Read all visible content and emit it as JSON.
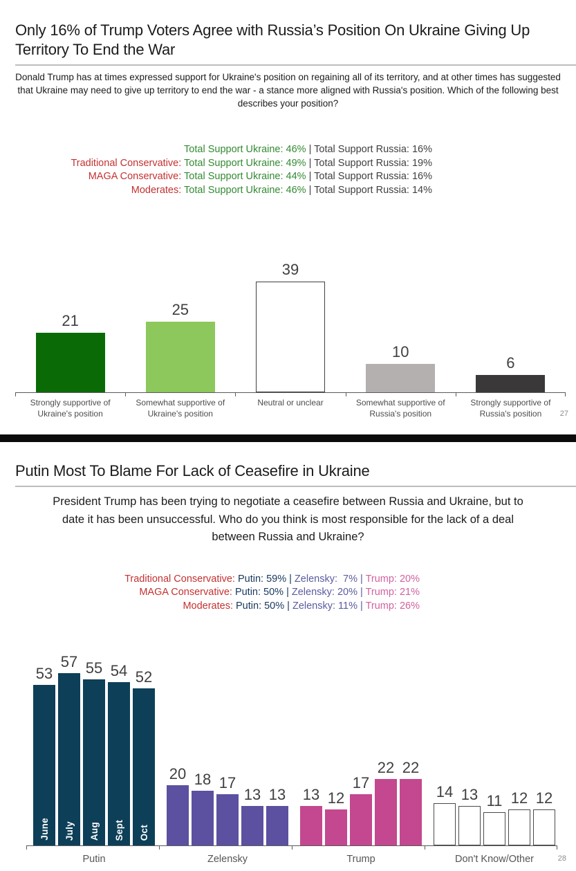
{
  "colors": {
    "category_red": "#c43131",
    "ukraine_green": "#338a33",
    "neutral_dark_text": "#3f3f3f",
    "putin_navy": "#17375d",
    "zelensky_purple": "#5a5ca0",
    "trump_pink": "#d2619e",
    "divider_black": "#0b0b0b"
  },
  "slide1": {
    "title": "Only 16% of Trump Voters Agree with Russia’s Position On Ukraine Giving Up Territory To End the War",
    "subtitle": "Donald Trump has at times expressed support for Ukraine's position on regaining all of its territory, and at other times has suggested that Ukraine may need to give up territory to end the war - a stance more aligned with Russia's position. Which of the following best describes your position?",
    "page_number": "27",
    "stats_lines": [
      {
        "segments": [
          {
            "text": "Total Support Ukraine: 46%",
            "color": "#338a33"
          },
          {
            "text": " | Total Support Russia: 16%",
            "color": "#3f3f3f"
          }
        ]
      },
      {
        "segments": [
          {
            "text": "Traditional Conservative: ",
            "color": "#c43131"
          },
          {
            "text": "Total Support Ukraine: 49%",
            "color": "#338a33"
          },
          {
            "text": " | Total Support Russia: 19%",
            "color": "#3f3f3f"
          }
        ]
      },
      {
        "segments": [
          {
            "text": "MAGA Conservative: ",
            "color": "#c43131"
          },
          {
            "text": "Total Support Ukraine: 44%",
            "color": "#338a33"
          },
          {
            "text": " | Total Support Russia: 16%",
            "color": "#3f3f3f"
          }
        ]
      },
      {
        "segments": [
          {
            "text": "Moderates: ",
            "color": "#c43131"
          },
          {
            "text": "Total Support Ukraine: 46%",
            "color": "#338a33"
          },
          {
            "text": " | Total Support Russia: 14%",
            "color": "#3f3f3f"
          }
        ]
      }
    ]
  },
  "slide2": {
    "title": "Putin Most To Blame For Lack of Ceasefire in Ukraine",
    "subtitle": "President Trump has been trying to negotiate a ceasefire between Russia and Ukraine, but to date it has been unsuccessful. Who do you think is most responsible for the lack of a deal between Russia and Ukraine?",
    "page_number": "28",
    "stats_lines": [
      {
        "segments": [
          {
            "text": "Traditional Conservative: ",
            "color": "#c43131"
          },
          {
            "text": "Putin: 59% | ",
            "color": "#17375d"
          },
          {
            "text": "Zelensky:  7% | ",
            "color": "#5a5ca0"
          },
          {
            "text": "Trump: 20%",
            "color": "#d2619e"
          }
        ]
      },
      {
        "segments": [
          {
            "text": "MAGA Conservative: ",
            "color": "#c43131"
          },
          {
            "text": "Putin: 50% | ",
            "color": "#17375d"
          },
          {
            "text": "Zelensky: 20% | ",
            "color": "#5a5ca0"
          },
          {
            "text": "Trump: 21%",
            "color": "#d2619e"
          }
        ]
      },
      {
        "segments": [
          {
            "text": "Moderates: ",
            "color": "#c43131"
          },
          {
            "text": "Putin: 50% | ",
            "color": "#17375d"
          },
          {
            "text": "Zelensky: 11% | ",
            "color": "#5a5ca0"
          },
          {
            "text": "Trump: 26%",
            "color": "#d2619e"
          }
        ]
      }
    ]
  },
  "chart_data": [
    {
      "type": "bar",
      "title": "Only 16% of Trump Voters Agree with Russia’s Position On Ukraine Giving Up Territory To End the War",
      "categories": [
        "Strongly supportive of\nUkraine's position",
        "Somewhat supportive of\nUkraine's position",
        "Neutral or unclear",
        "Somewhat supportive of\nRussia's position",
        "Strongly supportive of\nRussia's position"
      ],
      "values": [
        21,
        25,
        39,
        10,
        6
      ],
      "bar_colors": [
        "#0a6b06",
        "#8cc85c",
        "#ffffff",
        "#b3b0af",
        "#3a3839"
      ],
      "bar_border_colors": [
        null,
        null,
        "#3f3f3f",
        null,
        null
      ],
      "value_labels": true,
      "xlabel": "",
      "ylabel": "",
      "ylim": [
        0,
        45
      ],
      "grid": false,
      "legend": false
    },
    {
      "type": "bar",
      "title": "Putin Most To Blame For Lack of Ceasefire in Ukraine",
      "categories": [
        "Putin",
        "Zelensky",
        "Trump",
        "Don't Know/Other"
      ],
      "months": [
        "June",
        "July",
        "Aug",
        "Sept",
        "Oct"
      ],
      "series": [
        {
          "name": "Putin",
          "color": "#0d3f58",
          "border_color": null,
          "month_labels_inside_bars": true,
          "values": [
            53,
            57,
            55,
            54,
            52
          ]
        },
        {
          "name": "Zelensky",
          "color": "#5b51a0",
          "border_color": null,
          "month_labels_inside_bars": false,
          "values": [
            20,
            18,
            17,
            13,
            13
          ]
        },
        {
          "name": "Trump",
          "color": "#c3488f",
          "border_color": null,
          "month_labels_inside_bars": false,
          "values": [
            13,
            12,
            17,
            22,
            22
          ]
        },
        {
          "name": "Don't Know/Other",
          "color": "#ffffff",
          "border_color": "#4a4a4a",
          "month_labels_inside_bars": false,
          "values": [
            14,
            13,
            11,
            12,
            12
          ]
        }
      ],
      "value_labels": true,
      "xlabel": "",
      "ylabel": "",
      "ylim": [
        0,
        60
      ],
      "grid": false,
      "legend": false
    }
  ]
}
